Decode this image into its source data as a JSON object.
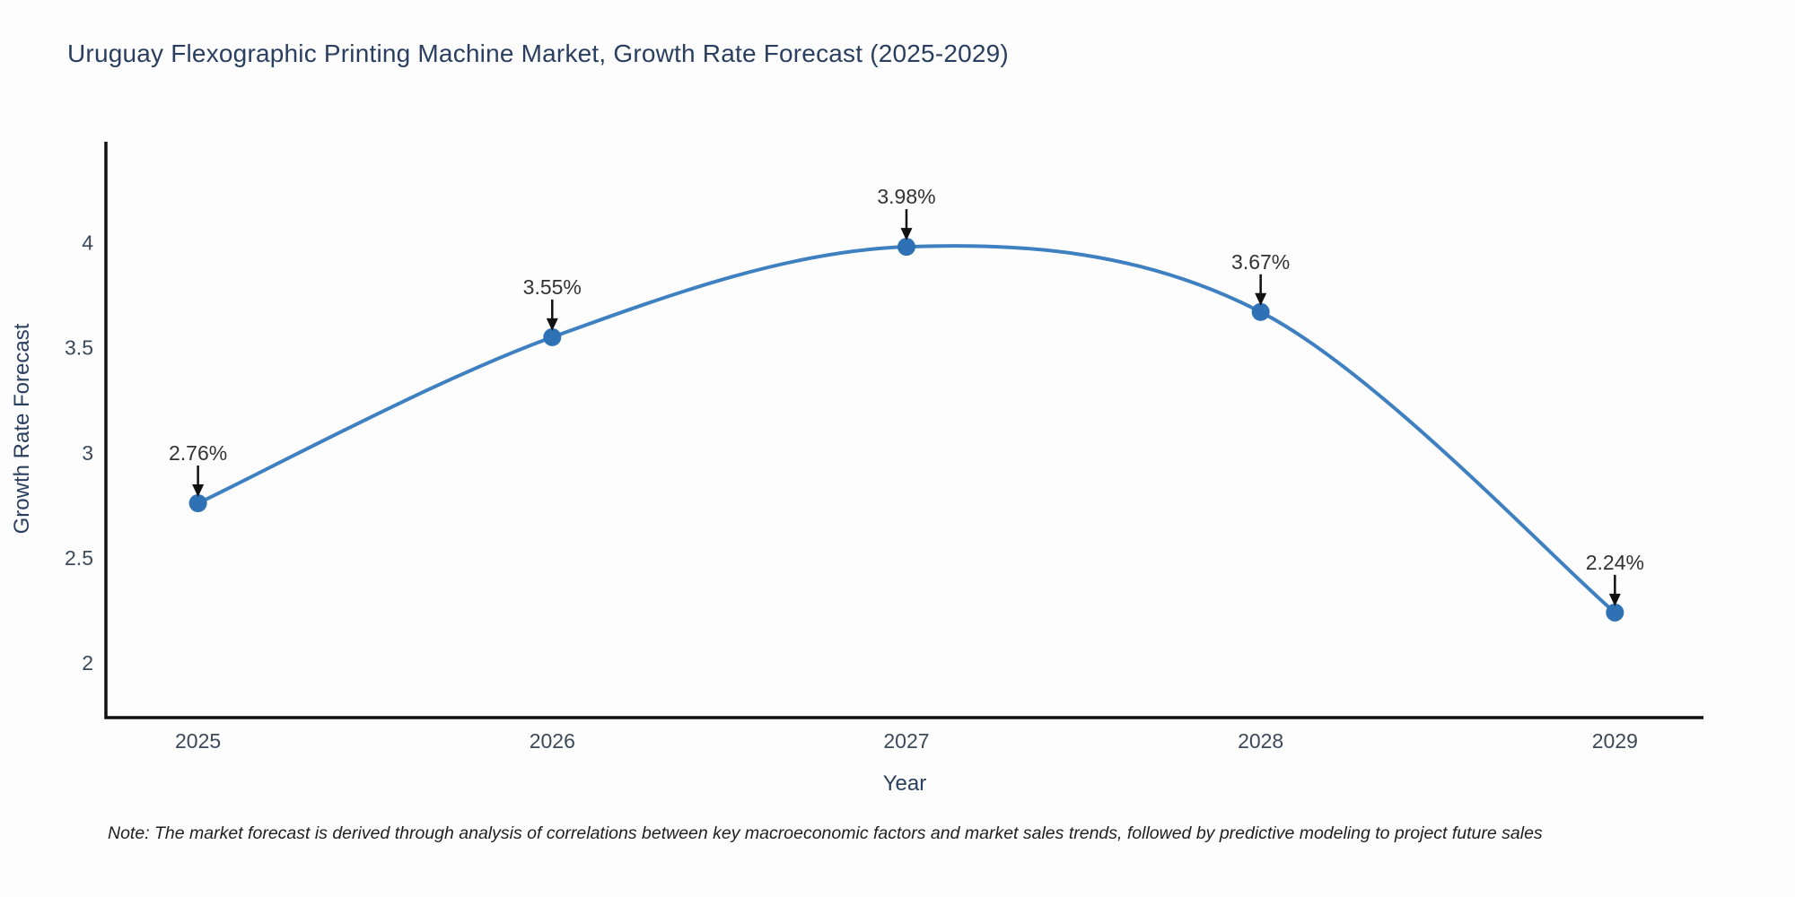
{
  "title": "Uruguay Flexographic Printing Machine Market, Growth Rate Forecast (2025-2029)",
  "footnote": "Note: The market forecast is derived through analysis of correlations between key macroeconomic factors and market sales trends, followed by predictive modeling to project future sales",
  "chart_data": {
    "type": "line",
    "line_shape": "spline",
    "title": "Uruguay Flexographic Printing Machine Market, Growth Rate Forecast (2025-2029)",
    "xlabel": "Year",
    "ylabel": "Growth Rate Forecast",
    "x": [
      2025,
      2026,
      2027,
      2028,
      2029
    ],
    "values": [
      2.76,
      3.55,
      3.98,
      3.67,
      2.24
    ],
    "point_labels": [
      "2.76%",
      "3.55%",
      "3.98%",
      "3.67%",
      "2.24%"
    ],
    "x_tick_labels": [
      "2025",
      "2026",
      "2027",
      "2028",
      "2029"
    ],
    "y_ticks": [
      2,
      2.5,
      3,
      3.5,
      4
    ],
    "xlim": [
      2024.74,
      2029.25
    ],
    "ylim": [
      1.74,
      4.48
    ],
    "grid": false,
    "legend": "none",
    "colors": {
      "line": "#3f80c1",
      "marker": "#2e72b5",
      "axis": "#111111",
      "tick_text": "#3c4959",
      "title_text": "#2a3f5f",
      "annotation_text": "#333333",
      "arrow": "#111111"
    }
  }
}
